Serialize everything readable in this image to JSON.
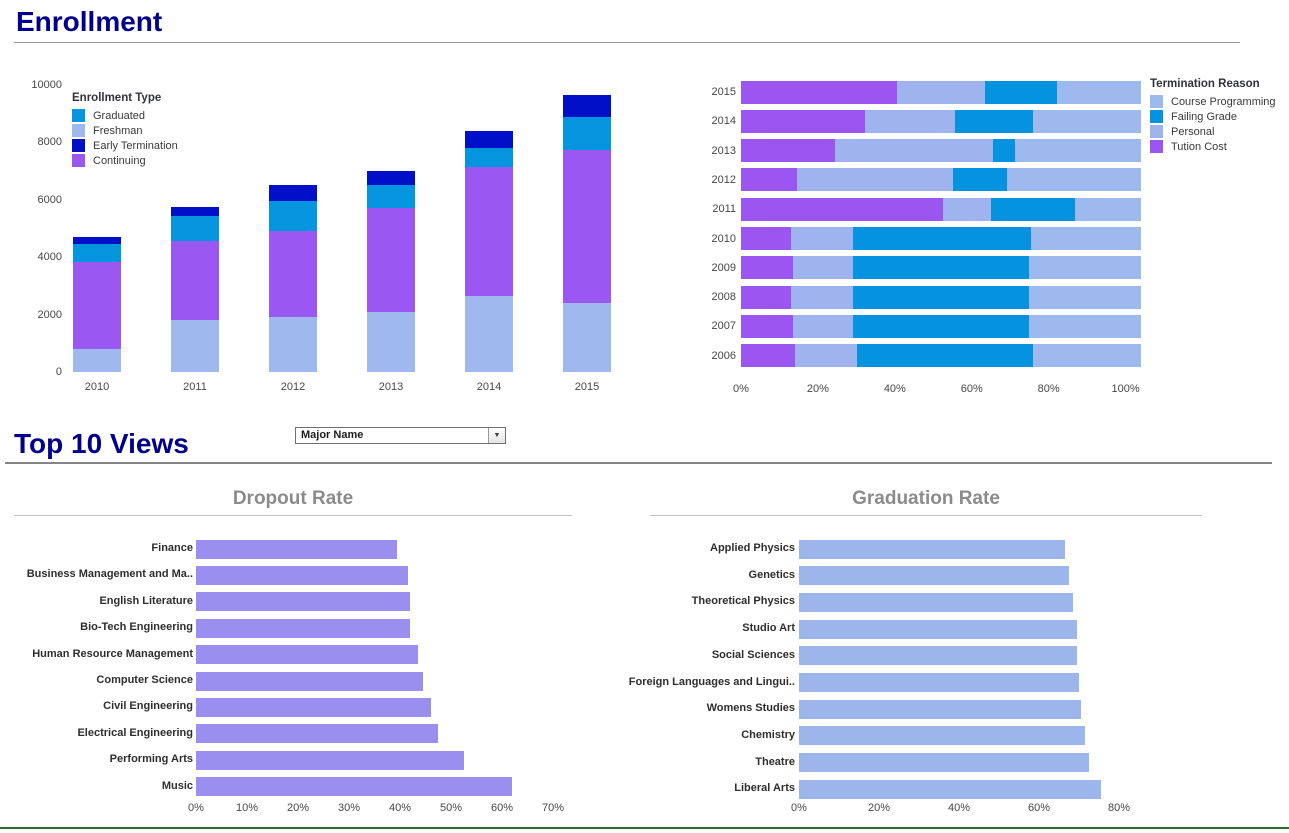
{
  "header": {
    "title": "Enrollment",
    "accent_color": "#00008b"
  },
  "section2": {
    "title": "Top 10 Views"
  },
  "controls": {
    "major_dropdown": {
      "value": "Major Name"
    }
  },
  "footer": {
    "divider_color": "#2f672f"
  },
  "chart_data": [
    {
      "id": "enrollment-by-year",
      "type": "bar",
      "stacked": true,
      "orientation": "vertical",
      "legend_title": "Enrollment Type",
      "legend_order": [
        "Graduated",
        "Freshman",
        "Early Termination",
        "Continuing"
      ],
      "legend_position": "top-left-inside",
      "categories": [
        "2010",
        "2011",
        "2012",
        "2013",
        "2014",
        "2015"
      ],
      "series": [
        {
          "name": "Freshman",
          "color": "#9fb8ee",
          "values": [
            800,
            1800,
            1900,
            2100,
            2650,
            2400
          ]
        },
        {
          "name": "Continuing",
          "color": "#9b57f2",
          "values": [
            3050,
            2750,
            3000,
            3600,
            4500,
            5350
          ]
        },
        {
          "name": "Graduated",
          "color": "#0595de",
          "values": [
            600,
            900,
            1050,
            800,
            650,
            1150
          ]
        },
        {
          "name": "Early Termination",
          "color": "#010fc8",
          "values": [
            250,
            300,
            550,
            500,
            600,
            750
          ]
        }
      ],
      "ylim": [
        0,
        10000
      ],
      "y_ticks": [
        "0",
        "2000",
        "4000",
        "6000",
        "8000",
        "10000"
      ],
      "grid": false
    },
    {
      "id": "termination-reason-by-year",
      "type": "bar",
      "stacked": true,
      "orientation": "horizontal",
      "legend_title": "Termination Reason",
      "legend_order": [
        "Course Programming",
        "Failing Grade",
        "Personal",
        "Tution Cost"
      ],
      "legend_position": "right",
      "categories": [
        "2015",
        "2014",
        "2013",
        "2012",
        "2011",
        "2010",
        "2009",
        "2008",
        "2007",
        "2006"
      ],
      "series": [
        {
          "name": "Tution Cost",
          "color": "#9b55f0",
          "values": [
            39,
            31,
            23.5,
            14,
            50.5,
            12.5,
            13,
            12.5,
            13,
            13.5
          ]
        },
        {
          "name": "Personal",
          "color": "#9fb4ee",
          "values": [
            22,
            22.5,
            39.5,
            39,
            12,
            15.5,
            15,
            15.5,
            15,
            15.5
          ]
        },
        {
          "name": "Failing Grade",
          "color": "#0592de",
          "values": [
            18,
            19.5,
            5.5,
            13.5,
            21,
            44.5,
            44,
            44,
            44,
            44
          ]
        },
        {
          "name": "Course Programming",
          "color": "#9db9ee",
          "values": [
            21,
            27,
            31.5,
            33.5,
            16.5,
            27.5,
            28,
            28,
            28,
            27
          ]
        }
      ],
      "unit": "percent-of-year-total",
      "x_ticks": [
        "0%",
        "20%",
        "40%",
        "60%",
        "80%",
        "100%"
      ],
      "grid": false
    },
    {
      "id": "dropout-rate",
      "type": "bar",
      "orientation": "horizontal",
      "title": "Dropout Rate",
      "categories": [
        "Finance",
        "Business Management and Ma..",
        "English Literature",
        "Bio-Tech Engineering",
        "Human Resource Management",
        "Computer Science",
        "Civil Engineering",
        "Electrical Engineering",
        "Performing Arts",
        "Music"
      ],
      "values": [
        39.5,
        41.5,
        42,
        42,
        43.5,
        44.5,
        46,
        47.5,
        52.5,
        62
      ],
      "unit": "percent",
      "color": "#9a8fee",
      "x_ticks": [
        "0%",
        "10%",
        "20%",
        "30%",
        "40%",
        "50%",
        "60%",
        "70%"
      ],
      "xlim": [
        0,
        70
      ],
      "grid": false
    },
    {
      "id": "graduation-rate",
      "type": "bar",
      "orientation": "horizontal",
      "title": "Graduation Rate",
      "categories": [
        "Applied Physics",
        "Genetics",
        "Theoretical Physics",
        "Studio Art",
        "Social Sciences",
        "Foreign Languages and Lingui..",
        "Womens Studies",
        "Chemistry",
        "Theatre",
        "Liberal Arts"
      ],
      "values": [
        66.5,
        67.5,
        68.5,
        69.5,
        69.5,
        70,
        70.5,
        71.5,
        72.5,
        75.5
      ],
      "unit": "percent",
      "color": "#9cb6ec",
      "x_ticks": [
        "0%",
        "20%",
        "40%",
        "60%",
        "80%"
      ],
      "xlim": [
        0,
        80
      ],
      "grid": false
    }
  ]
}
